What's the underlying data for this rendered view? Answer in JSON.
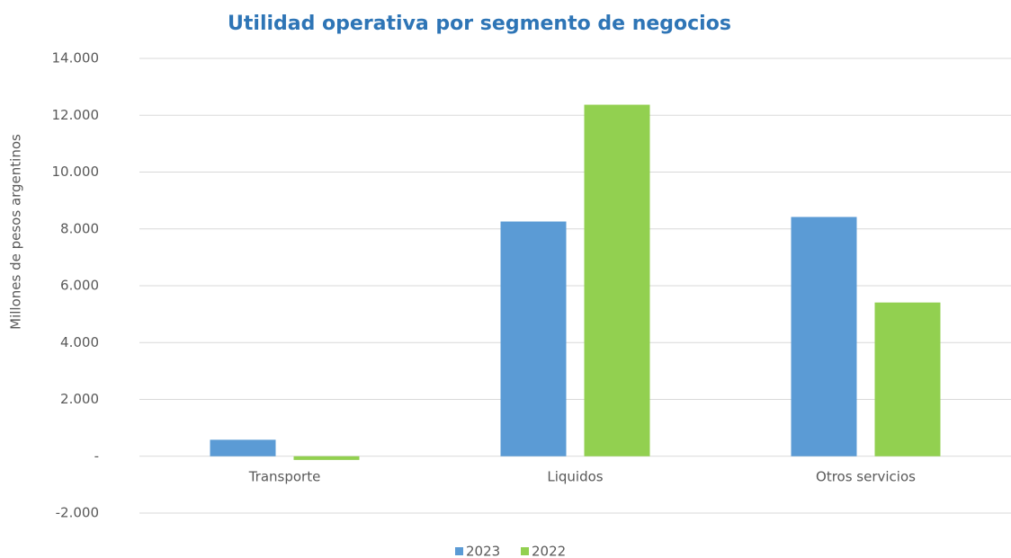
{
  "chart_data": {
    "type": "bar",
    "title": "Utilidad operativa por segmento de negocios",
    "y_label": "Millones de pesos argentinos",
    "categories": [
      "Transporte",
      "Liquidos",
      "Otros servicios"
    ],
    "series": [
      {
        "name": "2023",
        "color": "#5b9bd5",
        "values": [
          580,
          8260,
          8420
        ]
      },
      {
        "name": "2022",
        "color": "#92d050",
        "values": [
          -130,
          12370,
          5410
        ]
      }
    ],
    "ylim": [
      -2000,
      14000
    ],
    "yticks": [
      {
        "value": -2000,
        "label": "-2.000"
      },
      {
        "value": 0,
        "label": "-"
      },
      {
        "value": 2000,
        "label": "2.000"
      },
      {
        "value": 4000,
        "label": "4.000"
      },
      {
        "value": 6000,
        "label": "6.000"
      },
      {
        "value": 8000,
        "label": "8.000"
      },
      {
        "value": 10000,
        "label": "10.000"
      },
      {
        "value": 12000,
        "label": "12.000"
      },
      {
        "value": 14000,
        "label": "14.000"
      }
    ],
    "grid": true,
    "legend": "bottom"
  }
}
